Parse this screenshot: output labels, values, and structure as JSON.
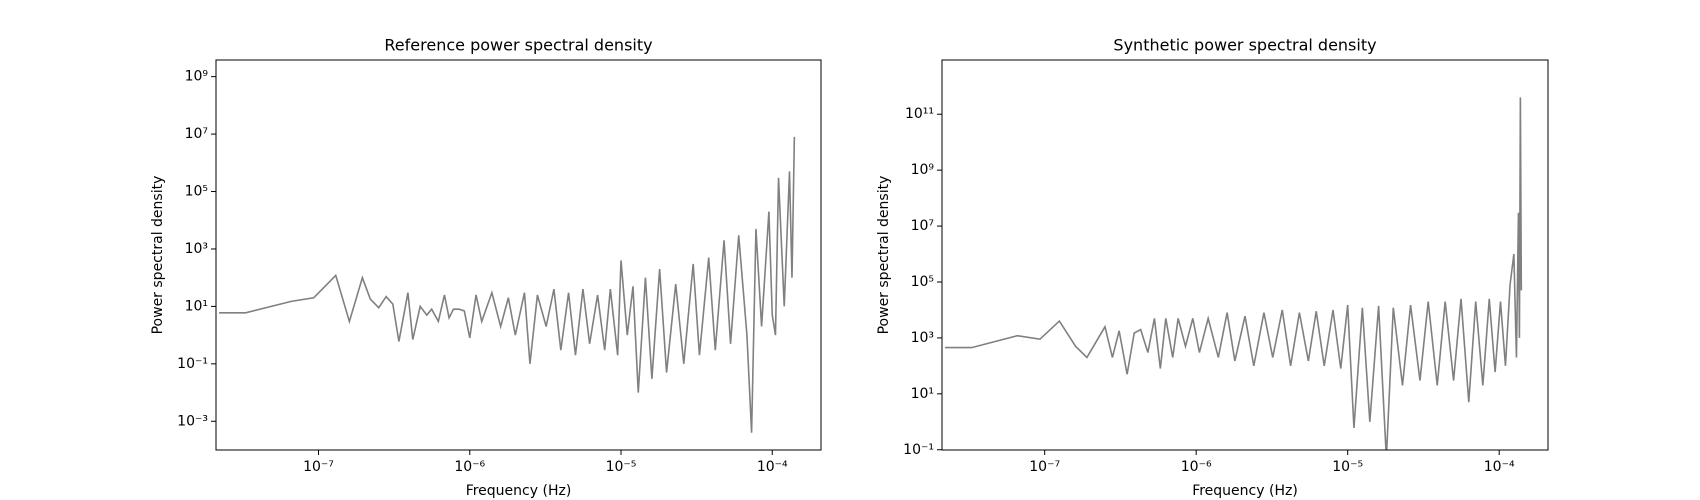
{
  "chart_data": [
    {
      "type": "line",
      "title": "Reference power spectral density",
      "xlabel": "Frequency (Hz)",
      "ylabel": "Power spectral density",
      "xscale": "log",
      "yscale": "log",
      "xlim": [
        2.1e-08,
        0.00021
      ],
      "ylim": [
        0.0001,
        3800000000.0
      ],
      "xticks": [
        {
          "value": 1e-07,
          "label": "10⁻⁷"
        },
        {
          "value": 1e-06,
          "label": "10⁻⁶"
        },
        {
          "value": 1e-05,
          "label": "10⁻⁵"
        },
        {
          "value": 0.0001,
          "label": "10⁻⁴"
        }
      ],
      "yticks": [
        {
          "value": 0.001,
          "label": "10⁻³"
        },
        {
          "value": 0.1,
          "label": "10⁻¹"
        },
        {
          "value": 10,
          "label": "10¹"
        },
        {
          "value": 1000,
          "label": "10³"
        },
        {
          "value": 100000,
          "label": "10⁵"
        },
        {
          "value": 10000000,
          "label": "10⁷"
        },
        {
          "value": 1000000000,
          "label": "10⁹"
        }
      ],
      "series": [
        {
          "color": "#808080",
          "x": [
            2.2e-08,
            3.3e-08,
            6.6e-08,
            9.3e-08,
            1.3e-07,
            1.6e-07,
            1.95e-07,
            2.2e-07,
            2.5e-07,
            2.8e-07,
            3.1e-07,
            3.4e-07,
            3.9e-07,
            4.2e-07,
            4.7e-07,
            5.2e-07,
            5.6e-07,
            6.2e-07,
            6.8e-07,
            7.3e-07,
            7.8e-07,
            8.5e-07,
            9.2e-07,
            1e-06,
            1.1e-06,
            1.2e-06,
            1.4e-06,
            1.6e-06,
            1.8e-06,
            2e-06,
            2.3e-06,
            2.5e-06,
            2.8e-06,
            3.2e-06,
            3.6e-06,
            4e-06,
            4.5e-06,
            5e-06,
            5.6e-06,
            6.2e-06,
            7e-06,
            7.8e-06,
            8.5e-06,
            9.5e-06,
            1e-05,
            1.1e-05,
            1.2e-05,
            1.3e-05,
            1.45e-05,
            1.6e-05,
            1.8e-05,
            2e-05,
            2.3e-05,
            2.6e-05,
            3e-05,
            3.3e-05,
            3.8e-05,
            4.2e-05,
            4.8e-05,
            5.3e-05,
            6e-05,
            6.8e-05,
            7.3e-05,
            7.8e-05,
            8.5e-05,
            9.5e-05,
            0.0001,
            0.000105,
            0.00011,
            0.00012,
            0.00013,
            0.000135,
            0.00014
          ],
          "values": [
            6,
            6,
            15,
            20,
            120,
            3,
            100,
            18,
            9,
            22,
            12,
            0.6,
            30,
            0.7,
            10,
            5,
            8,
            3,
            25,
            4,
            8,
            8,
            7,
            0.8,
            25,
            3,
            30,
            2,
            20,
            1,
            30,
            0.1,
            25,
            2,
            40,
            0.3,
            30,
            0.2,
            40,
            0.5,
            25,
            0.3,
            40,
            0.2,
            400,
            1,
            50,
            0.01,
            100,
            0.03,
            200,
            0.05,
            60,
            0.1,
            300,
            0.2,
            500,
            0.3,
            2000,
            0.5,
            3000,
            1,
            0.0004,
            5000,
            2,
            20000,
            5,
            1,
            300000,
            10,
            500000,
            100,
            8000000
          ]
        }
      ]
    },
    {
      "type": "line",
      "title": "Synthetic power spectral density",
      "xlabel": "Frequency (Hz)",
      "ylabel": "Power spectral density",
      "xscale": "log",
      "yscale": "log",
      "xlim": [
        2.1e-08,
        0.00021
      ],
      "ylim": [
        0.098,
        8700000000000.0
      ],
      "xticks": [
        {
          "value": 1e-07,
          "label": "10⁻⁷"
        },
        {
          "value": 1e-06,
          "label": "10⁻⁶"
        },
        {
          "value": 1e-05,
          "label": "10⁻⁵"
        },
        {
          "value": 0.0001,
          "label": "10⁻⁴"
        }
      ],
      "yticks": [
        {
          "value": 0.1,
          "label": "10⁻¹"
        },
        {
          "value": 10,
          "label": "10¹"
        },
        {
          "value": 1000,
          "label": "10³"
        },
        {
          "value": 100000,
          "label": "10⁵"
        },
        {
          "value": 10000000,
          "label": "10⁷"
        },
        {
          "value": 1000000000,
          "label": "10⁹"
        },
        {
          "value": 100000000000,
          "label": "10¹¹"
        }
      ],
      "series": [
        {
          "color": "#808080",
          "x": [
            2.2e-08,
            3.3e-08,
            6.6e-08,
            9.3e-08,
            1.25e-07,
            1.6e-07,
            1.9e-07,
            2.5e-07,
            2.8e-07,
            3.1e-07,
            3.5e-07,
            3.9e-07,
            4.3e-07,
            4.8e-07,
            5.3e-07,
            5.8e-07,
            6.3e-07,
            7e-07,
            7.6e-07,
            8.5e-07,
            9.5e-07,
            1.05e-06,
            1.2e-06,
            1.4e-06,
            1.6e-06,
            1.8e-06,
            2.1e-06,
            2.4e-06,
            2.8e-06,
            3.2e-06,
            3.7e-06,
            4.2e-06,
            4.8e-06,
            5.5e-06,
            6.2e-06,
            7e-06,
            8e-06,
            9e-06,
            1e-05,
            1.1e-05,
            1.25e-05,
            1.4e-05,
            1.6e-05,
            1.8e-05,
            2e-05,
            2.3e-05,
            2.6e-05,
            3e-05,
            3.4e-05,
            3.9e-05,
            4.4e-05,
            5e-05,
            5.6e-05,
            6.3e-05,
            7e-05,
            7.8e-05,
            8.6e-05,
            9.4e-05,
            0.000102,
            0.00011,
            0.000118,
            0.000125,
            0.00013,
            0.000134,
            0.000136,
            0.000138,
            0.00014
          ],
          "values": [
            450,
            450,
            1200,
            900,
            4000,
            500,
            200,
            2500,
            200,
            1800,
            50,
            1500,
            2000,
            300,
            5000,
            80,
            5000,
            200,
            5000,
            500,
            5000,
            300,
            5000,
            200,
            8000,
            150,
            6000,
            100,
            8000,
            200,
            10000,
            100,
            8000,
            150,
            9000,
            100,
            10000,
            80,
            15000,
            0.6,
            12000,
            1,
            14000,
            0.05,
            12000,
            20,
            15000,
            30,
            20000,
            20,
            20000,
            30,
            25000,
            5,
            20000,
            20,
            25000,
            60,
            20000,
            100,
            80000,
            1000000,
            200,
            30000000,
            1000,
            400000000000,
            50000
          ]
        }
      ]
    }
  ]
}
